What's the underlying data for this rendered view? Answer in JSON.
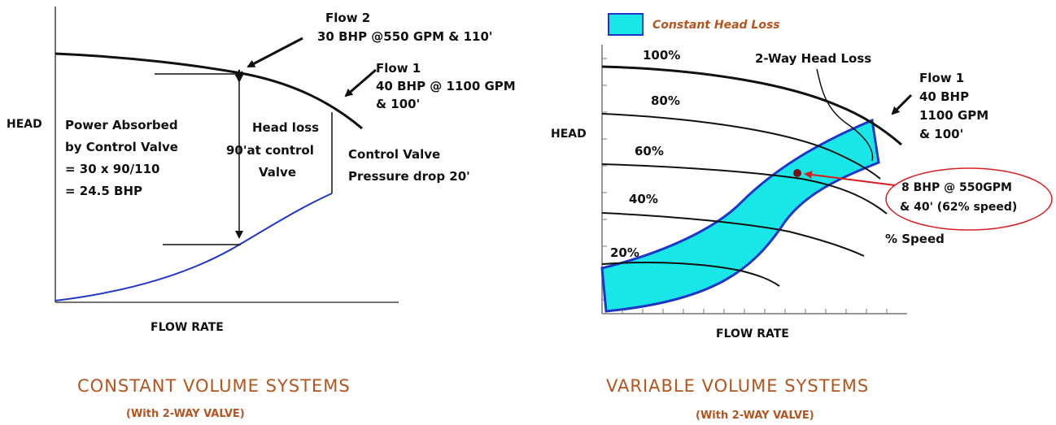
{
  "left": {
    "axis_y": "HEAD",
    "axis_x": "FLOW RATE",
    "flow2_title": "Flow 2",
    "flow2_detail": "30 BHP @550 GPM & 110'",
    "flow1_title": "Flow 1",
    "flow1_line1": "40 BHP @ 1100 GPM",
    "flow1_line2": "& 100'",
    "power_line1": "Power Absorbed",
    "power_line2": "by Control Valve",
    "power_line3": "= 30 x 90/110",
    "power_line4": "= 24.5 BHP",
    "headloss_line1": "Head loss",
    "headloss_line2": "90'at control",
    "headloss_line3": "Valve",
    "cv_line1": "Control Valve",
    "cv_line2": "Pressure drop 20'",
    "title": "CONSTANT VOLUME SYSTEMS",
    "subtitle": "(With 2-WAY VALVE)"
  },
  "right": {
    "legend": "Constant Head Loss",
    "axis_y": "HEAD",
    "axis_x": "FLOW RATE",
    "speed_100": "100%",
    "speed_80": "80%",
    "speed_60": "60%",
    "speed_40": "40%",
    "speed_20": "20%",
    "twoway": "2-Way Head Loss",
    "flow1_line1": "Flow 1",
    "flow1_line2": "40 BHP",
    "flow1_line3": "1100 GPM",
    "flow1_line4": "& 100'",
    "op_line1": "8 BHP @ 550GPM",
    "op_line2": "& 40' (62% speed)",
    "pct_speed": "% Speed",
    "title": "VARIABLE VOLUME SYSTEMS",
    "subtitle": "(With 2-WAY VALVE)"
  },
  "colors": {
    "system_curve": "#1f35c9",
    "region_fill": "#19e6e6",
    "callout_red": "#d81f1f",
    "title_orange": "#b5541c"
  }
}
